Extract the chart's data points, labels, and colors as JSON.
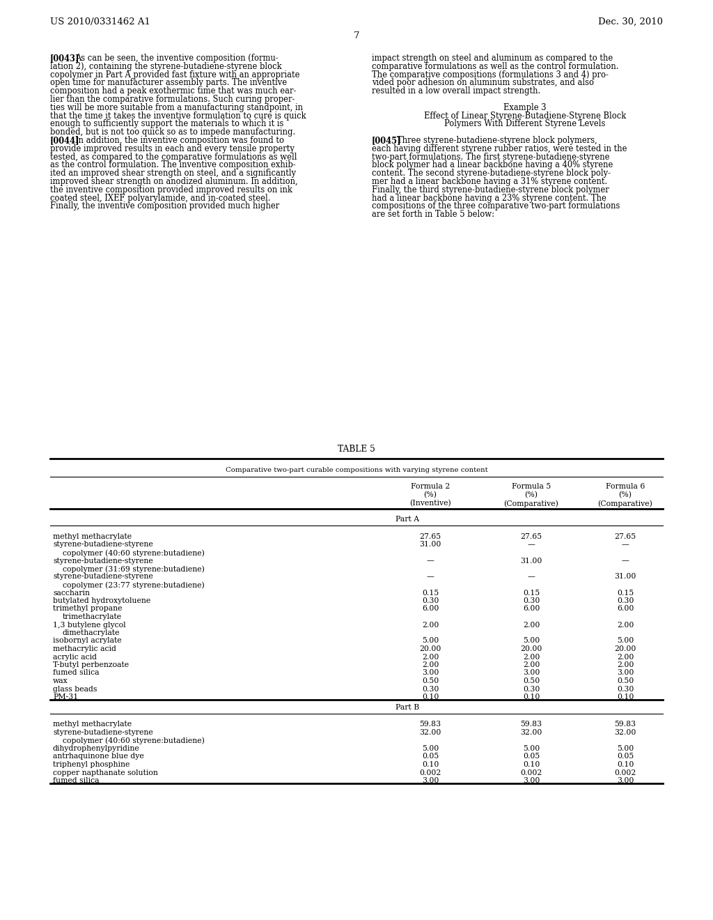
{
  "bg_color": "#ffffff",
  "header_left": "US 2010/0331462 A1",
  "header_right": "Dec. 30, 2010",
  "page_number": "7",
  "left_col_lines": [
    {
      "label": "[0043]",
      "text": "As can be seen, the inventive composition (formu-"
    },
    {
      "label": "",
      "text": "lation 2), containing the styrene-butadiene-styrene block"
    },
    {
      "label": "",
      "text": "copolymer in Part A provided fast fixture with an appropriate"
    },
    {
      "label": "",
      "text": "open time for manufacturer assembly parts. The inventive"
    },
    {
      "label": "",
      "text": "composition had a peak exothermic time that was much ear-"
    },
    {
      "label": "",
      "text": "lier than the comparative formulations. Such curing proper-"
    },
    {
      "label": "",
      "text": "ties will be more suitable from a manufacturing standpoint, in"
    },
    {
      "label": "",
      "text": "that the time it takes the inventive formulation to cure is quick"
    },
    {
      "label": "",
      "text": "enough to sufficiently support the materials to which it is"
    },
    {
      "label": "",
      "text": "bonded, but is not too quick so as to impede manufacturing."
    },
    {
      "label": "[0044]",
      "text": "In addition, the inventive composition was found to"
    },
    {
      "label": "",
      "text": "provide improved results in each and every tensile property"
    },
    {
      "label": "",
      "text": "tested, as compared to the comparative formulations as well"
    },
    {
      "label": "",
      "text": "as the control formulation. The inventive composition exhib-"
    },
    {
      "label": "",
      "text": "ited an improved shear strength on steel, and a significantly"
    },
    {
      "label": "",
      "text": "improved shear strength on anodized aluminum. In addition,"
    },
    {
      "label": "",
      "text": "the inventive composition provided improved results on ink"
    },
    {
      "label": "",
      "text": "coated steel, IXEF polyarylamide, and in-coated steel."
    },
    {
      "label": "",
      "text": "Finally, the inventive composition provided much higher"
    }
  ],
  "right_col_lines": [
    {
      "text": "impact strength on steel and aluminum as compared to the"
    },
    {
      "text": "comparative formulations as well as the control formulation."
    },
    {
      "text": "The comparative compositions (formulations 3 and 4) pro-"
    },
    {
      "text": "vided poor adhesion on aluminum substrates, and also"
    },
    {
      "text": "resulted in a low overall impact strength."
    },
    {
      "text": ""
    },
    {
      "text": "Example 3",
      "center": true
    },
    {
      "text": "Effect of Linear Styrene-Butadiene-Styrene Block",
      "center": true
    },
    {
      "text": "Polymers With Different Styrene Levels",
      "center": true
    },
    {
      "text": ""
    },
    {
      "label": "[0045]",
      "text": "Three styrene-butadiene-styrene block polymers,"
    },
    {
      "label": "",
      "text": "each having different styrene rubber ratios, were tested in the"
    },
    {
      "label": "",
      "text": "two-part formulations. The first styrene-butadiene-styrene"
    },
    {
      "label": "",
      "text": "block polymer had a linear backbone having a 40% styrene"
    },
    {
      "label": "",
      "text": "content. The second styrene-butadiene-styrene block poly-"
    },
    {
      "label": "",
      "text": "mer had a linear backbone having a 31% styrene content."
    },
    {
      "label": "",
      "text": "Finally, the third styrene-butadiene-styrene block polymer"
    },
    {
      "label": "",
      "text": "had a linear backbone having a 23% styrene content. The"
    },
    {
      "label": "",
      "text": "compositions of the three comparative two-part formulations"
    },
    {
      "label": "",
      "text": "are set forth in Table 5 below:"
    }
  ],
  "table_title": "TABLE 5",
  "table_subtitle": "Comparative two-part curable compositions with varying styrene content",
  "col_headers": [
    [
      "Formula 2",
      "(%)",
      "(Inventive)"
    ],
    [
      "Formula 5",
      "(%)",
      "(Comparative)"
    ],
    [
      "Formula 6",
      "(%)",
      "(Comparative)"
    ]
  ],
  "part_a_label": "Part A",
  "part_b_label": "Part B",
  "table_rows_a": [
    [
      "methyl methacrylate",
      "27.65",
      "27.65",
      "27.65"
    ],
    [
      "styrene-butadiene-styrene",
      "31.00",
      "—",
      "—"
    ],
    [
      "copolymer (40:60 styrene:butadiene)",
      "",
      "",
      ""
    ],
    [
      "styrene-butadiene-styrene",
      "—",
      "31.00",
      "—"
    ],
    [
      "copolymer (31:69 styrene:butadiene)",
      "",
      "",
      ""
    ],
    [
      "styrene-butadiene-styrene",
      "—",
      "—",
      "31.00"
    ],
    [
      "copolymer (23:77 styrene:butadiene)",
      "",
      "",
      ""
    ],
    [
      "saccharin",
      "0.15",
      "0.15",
      "0.15"
    ],
    [
      "butylated hydroxytoluene",
      "0.30",
      "0.30",
      "0.30"
    ],
    [
      "trimethyl propane",
      "6.00",
      "6.00",
      "6.00"
    ],
    [
      "trimethacrylate",
      "",
      "",
      ""
    ],
    [
      "1,3 butylene glycol",
      "2.00",
      "2.00",
      "2.00"
    ],
    [
      "dimethacrylate",
      "",
      "",
      ""
    ],
    [
      "isobornyl acrylate",
      "5.00",
      "5.00",
      "5.00"
    ],
    [
      "methacrylic acid",
      "20.00",
      "20.00",
      "20.00"
    ],
    [
      "acrylic acid",
      "2.00",
      "2.00",
      "2.00"
    ],
    [
      "T-butyl perbenzoate",
      "2.00",
      "2.00",
      "2.00"
    ],
    [
      "fumed silica",
      "3.00",
      "3.00",
      "3.00"
    ],
    [
      "wax",
      "0.50",
      "0.50",
      "0.50"
    ],
    [
      "glass beads",
      "0.30",
      "0.30",
      "0.30"
    ],
    [
      "PM-31",
      "0.10",
      "0.10",
      "0.10"
    ]
  ],
  "table_rows_b": [
    [
      "methyl methacrylate",
      "59.83",
      "59.83",
      "59.83"
    ],
    [
      "styrene-butadiene-styrene",
      "32.00",
      "32.00",
      "32.00"
    ],
    [
      "copolymer (40:60 styrene:butadiene)",
      "",
      "",
      ""
    ],
    [
      "dihydrophenylpyridine",
      "5.00",
      "5.00",
      "5.00"
    ],
    [
      "antrhaquinone blue dye",
      "0.05",
      "0.05",
      "0.05"
    ],
    [
      "triphenyl phosphine",
      "0.10",
      "0.10",
      "0.10"
    ],
    [
      "copper napthanate solution",
      "0.002",
      "0.002",
      "0.002"
    ],
    [
      "fumed silica",
      "3.00",
      "3.00",
      "3.00"
    ]
  ]
}
